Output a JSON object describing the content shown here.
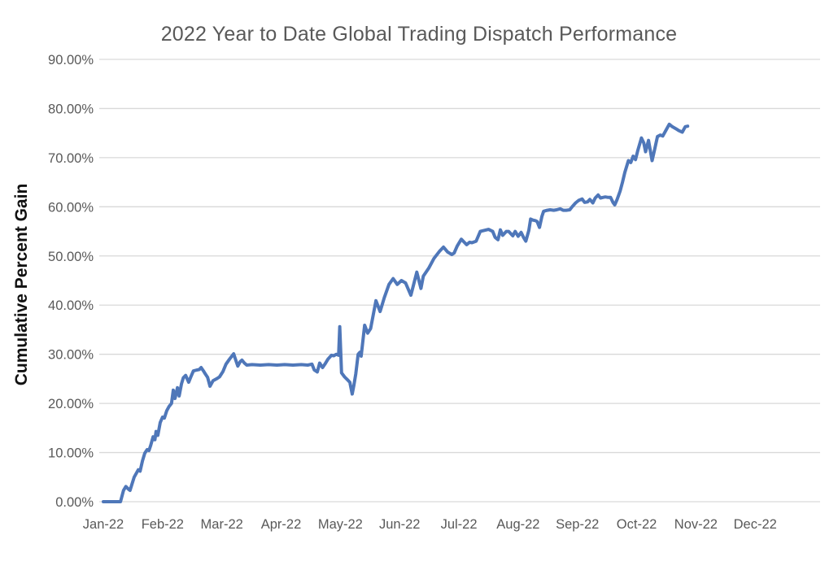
{
  "chart_data": {
    "type": "line",
    "title": "2022 Year to Date Global Trading Dispatch Performance",
    "xlabel": "",
    "ylabel": "Cumulative Percent Gain",
    "legend": "none",
    "grid": "horizontal",
    "background_color": "#ffffff",
    "gridline_color": "#d9d9d9",
    "title_color": "#595959",
    "tick_label_color": "#595959",
    "ylim": [
      0,
      90
    ],
    "y_tick_labels": [
      "0.00%",
      "10.00%",
      "20.00%",
      "30.00%",
      "40.00%",
      "50.00%",
      "60.00%",
      "70.00%",
      "80.00%",
      "90.00%"
    ],
    "y_tick_values": [
      0,
      10,
      20,
      30,
      40,
      50,
      60,
      70,
      80,
      90
    ],
    "x_tick_labels": [
      "Jan-22",
      "Feb-22",
      "Mar-22",
      "Apr-22",
      "May-22",
      "Jun-22",
      "Jul-22",
      "Aug-22",
      "Sep-22",
      "Oct-22",
      "Nov-22",
      "Dec-22"
    ],
    "x_unit_note": "x = months after Jan-22 (0 = Jan-22 tick); data runs through late Oct-22",
    "series": [
      {
        "name": "Cumulative Percent Gain",
        "color": "#4f77b9",
        "stroke_width": 4,
        "points": [
          [
            0.0,
            0.0
          ],
          [
            0.29,
            0.0
          ],
          [
            0.34,
            2.3
          ],
          [
            0.38,
            3.1
          ],
          [
            0.43,
            2.5
          ],
          [
            0.45,
            2.3
          ],
          [
            0.52,
            5.0
          ],
          [
            0.59,
            6.5
          ],
          [
            0.62,
            6.2
          ],
          [
            0.66,
            8.3
          ],
          [
            0.7,
            9.9
          ],
          [
            0.74,
            10.6
          ],
          [
            0.77,
            10.4
          ],
          [
            0.8,
            11.5
          ],
          [
            0.84,
            13.2
          ],
          [
            0.87,
            12.6
          ],
          [
            0.89,
            14.3
          ],
          [
            0.92,
            13.5
          ],
          [
            0.96,
            16.1
          ],
          [
            1.0,
            17.2
          ],
          [
            1.03,
            17.0
          ],
          [
            1.07,
            18.5
          ],
          [
            1.11,
            19.4
          ],
          [
            1.15,
            20.0
          ],
          [
            1.18,
            22.7
          ],
          [
            1.21,
            21.0
          ],
          [
            1.25,
            23.2
          ],
          [
            1.28,
            21.5
          ],
          [
            1.32,
            24.0
          ],
          [
            1.35,
            25.2
          ],
          [
            1.39,
            25.7
          ],
          [
            1.44,
            24.3
          ],
          [
            1.48,
            25.5
          ],
          [
            1.52,
            26.6
          ],
          [
            1.58,
            26.8
          ],
          [
            1.62,
            26.9
          ],
          [
            1.65,
            27.3
          ],
          [
            1.69,
            26.6
          ],
          [
            1.72,
            26.0
          ],
          [
            1.76,
            25.3
          ],
          [
            1.8,
            23.5
          ],
          [
            1.85,
            24.6
          ],
          [
            1.91,
            25.0
          ],
          [
            1.96,
            25.4
          ],
          [
            2.02,
            26.5
          ],
          [
            2.07,
            28.0
          ],
          [
            2.13,
            29.0
          ],
          [
            2.2,
            30.1
          ],
          [
            2.24,
            28.6
          ],
          [
            2.27,
            27.6
          ],
          [
            2.31,
            28.5
          ],
          [
            2.34,
            28.8
          ],
          [
            2.38,
            28.2
          ],
          [
            2.42,
            27.8
          ],
          [
            2.51,
            27.9
          ],
          [
            2.65,
            27.8
          ],
          [
            2.79,
            27.9
          ],
          [
            2.93,
            27.8
          ],
          [
            3.06,
            27.9
          ],
          [
            3.2,
            27.8
          ],
          [
            3.34,
            27.9
          ],
          [
            3.45,
            27.8
          ],
          [
            3.52,
            28.0
          ],
          [
            3.56,
            26.8
          ],
          [
            3.61,
            26.4
          ],
          [
            3.65,
            28.2
          ],
          [
            3.7,
            27.3
          ],
          [
            3.74,
            28.0
          ],
          [
            3.79,
            29.0
          ],
          [
            3.85,
            29.8
          ],
          [
            3.89,
            29.7
          ],
          [
            3.93,
            30.0
          ],
          [
            3.97,
            29.8
          ],
          [
            3.99,
            35.6
          ],
          [
            4.02,
            26.2
          ],
          [
            4.07,
            25.4
          ],
          [
            4.12,
            24.8
          ],
          [
            4.16,
            24.3
          ],
          [
            4.2,
            21.9
          ],
          [
            4.23,
            23.8
          ],
          [
            4.26,
            26.0
          ],
          [
            4.3,
            30.0
          ],
          [
            4.33,
            30.4
          ],
          [
            4.35,
            29.6
          ],
          [
            4.41,
            35.9
          ],
          [
            4.46,
            34.3
          ],
          [
            4.51,
            35.2
          ],
          [
            4.6,
            40.9
          ],
          [
            4.67,
            38.7
          ],
          [
            4.74,
            41.5
          ],
          [
            4.82,
            44.2
          ],
          [
            4.89,
            45.4
          ],
          [
            4.96,
            44.2
          ],
          [
            5.03,
            45.0
          ],
          [
            5.1,
            44.5
          ],
          [
            5.19,
            42.0
          ],
          [
            5.29,
            46.7
          ],
          [
            5.36,
            43.4
          ],
          [
            5.4,
            45.9
          ],
          [
            5.49,
            47.5
          ],
          [
            5.58,
            49.5
          ],
          [
            5.67,
            50.9
          ],
          [
            5.74,
            51.8
          ],
          [
            5.81,
            50.8
          ],
          [
            5.88,
            50.3
          ],
          [
            5.92,
            50.6
          ],
          [
            5.97,
            52.0
          ],
          [
            6.04,
            53.4
          ],
          [
            6.09,
            52.8
          ],
          [
            6.13,
            52.3
          ],
          [
            6.18,
            52.8
          ],
          [
            6.22,
            52.7
          ],
          [
            6.29,
            53.0
          ],
          [
            6.36,
            55.0
          ],
          [
            6.43,
            55.2
          ],
          [
            6.5,
            55.4
          ],
          [
            6.57,
            55.0
          ],
          [
            6.61,
            53.8
          ],
          [
            6.66,
            53.3
          ],
          [
            6.7,
            55.3
          ],
          [
            6.74,
            54.2
          ],
          [
            6.8,
            55.0
          ],
          [
            6.84,
            55.0
          ],
          [
            6.91,
            54.1
          ],
          [
            6.95,
            55.0
          ],
          [
            7.0,
            54.0
          ],
          [
            7.05,
            54.8
          ],
          [
            7.09,
            53.8
          ],
          [
            7.13,
            53.0
          ],
          [
            7.18,
            55.2
          ],
          [
            7.21,
            57.5
          ],
          [
            7.25,
            57.3
          ],
          [
            7.29,
            57.2
          ],
          [
            7.32,
            57.0
          ],
          [
            7.36,
            55.8
          ],
          [
            7.4,
            58.0
          ],
          [
            7.43,
            59.1
          ],
          [
            7.49,
            59.3
          ],
          [
            7.54,
            59.4
          ],
          [
            7.6,
            59.3
          ],
          [
            7.65,
            59.4
          ],
          [
            7.71,
            59.6
          ],
          [
            7.76,
            59.3
          ],
          [
            7.81,
            59.3
          ],
          [
            7.87,
            59.4
          ],
          [
            7.91,
            60.0
          ],
          [
            7.97,
            60.8
          ],
          [
            8.02,
            61.3
          ],
          [
            8.08,
            61.6
          ],
          [
            8.12,
            60.9
          ],
          [
            8.17,
            61.0
          ],
          [
            8.21,
            61.5
          ],
          [
            8.26,
            60.8
          ],
          [
            8.3,
            61.8
          ],
          [
            8.35,
            62.4
          ],
          [
            8.39,
            61.8
          ],
          [
            8.43,
            61.9
          ],
          [
            8.47,
            62.0
          ],
          [
            8.52,
            61.9
          ],
          [
            8.56,
            61.9
          ],
          [
            8.6,
            60.9
          ],
          [
            8.63,
            60.4
          ],
          [
            8.67,
            61.5
          ],
          [
            8.72,
            63.2
          ],
          [
            8.76,
            65.0
          ],
          [
            8.8,
            67.0
          ],
          [
            8.86,
            69.4
          ],
          [
            8.9,
            69.0
          ],
          [
            8.94,
            70.3
          ],
          [
            8.98,
            69.6
          ],
          [
            9.02,
            71.5
          ],
          [
            9.08,
            74.0
          ],
          [
            9.12,
            73.0
          ],
          [
            9.15,
            71.2
          ],
          [
            9.2,
            73.5
          ],
          [
            9.26,
            69.4
          ],
          [
            9.3,
            71.5
          ],
          [
            9.35,
            74.3
          ],
          [
            9.4,
            74.6
          ],
          [
            9.44,
            74.4
          ],
          [
            9.49,
            75.5
          ],
          [
            9.55,
            76.8
          ],
          [
            9.6,
            76.3
          ],
          [
            9.66,
            75.9
          ],
          [
            9.71,
            75.5
          ],
          [
            9.77,
            75.2
          ],
          [
            9.82,
            76.3
          ],
          [
            9.86,
            76.4
          ]
        ]
      }
    ]
  }
}
